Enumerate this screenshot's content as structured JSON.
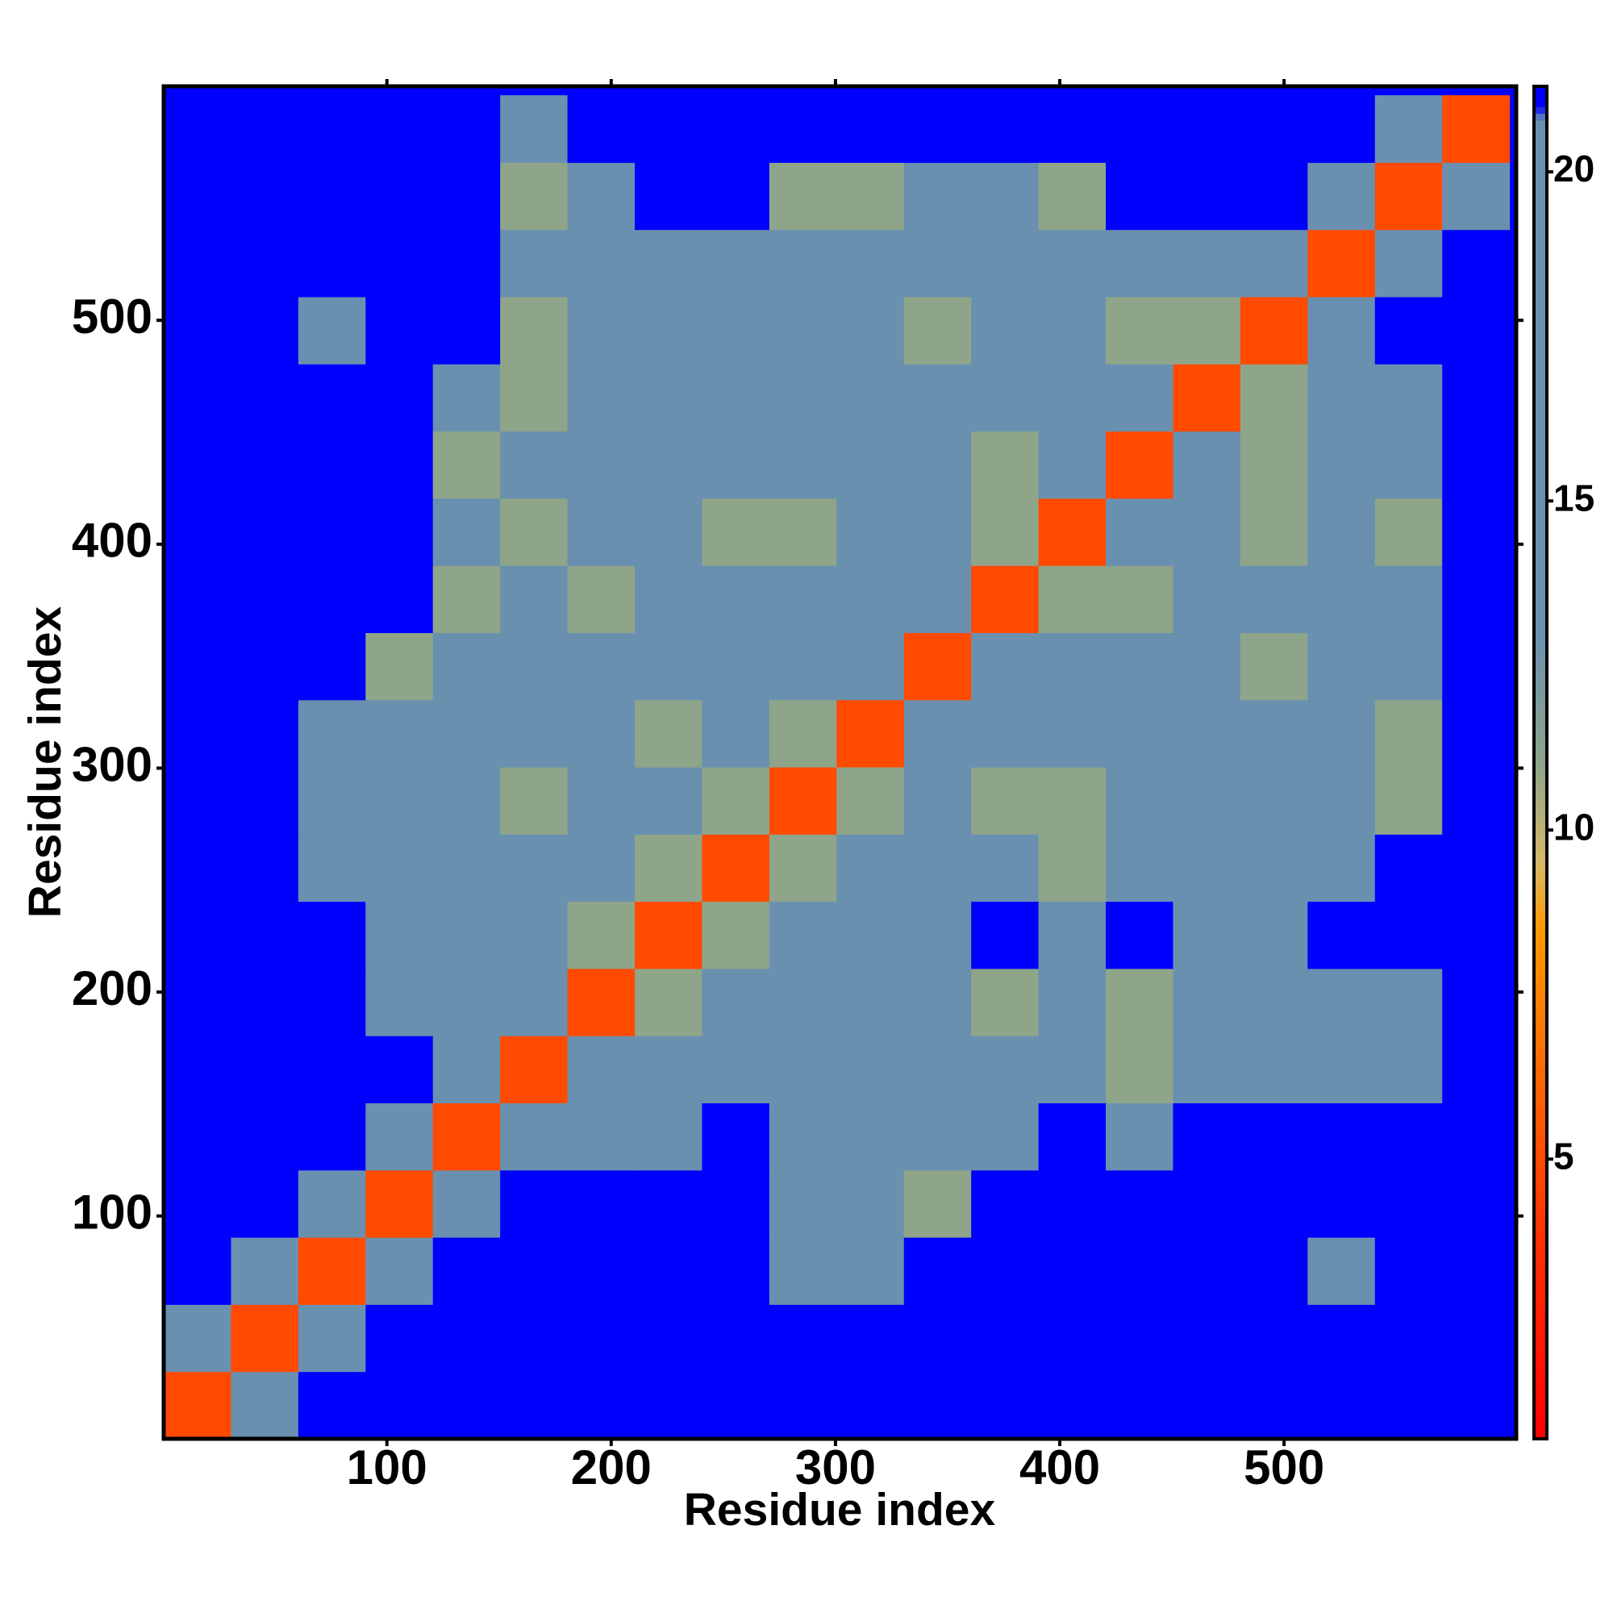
{
  "chart_data": {
    "type": "heatmap",
    "xlabel": "Residue index",
    "ylabel": "Residue index",
    "xlim": [
      0.5,
      603.5
    ],
    "ylim": [
      0.5,
      604.5
    ],
    "xticks": [
      100,
      200,
      300,
      400,
      500
    ],
    "yticks": [
      100,
      200,
      300,
      400,
      500
    ],
    "xbins": [
      0.5,
      30.5,
      60.5,
      90.5,
      120.5,
      150.5,
      180.5,
      210.5,
      240.5,
      270.5,
      300.5,
      330.5,
      360.5,
      390.5,
      420.5,
      450.5,
      480.5,
      510.5,
      540.5,
      570.5,
      600.5
    ],
    "ybins": [
      0.5,
      30.5,
      60.5,
      90.5,
      120.5,
      150.5,
      180.5,
      210.5,
      240.5,
      270.5,
      300.5,
      330.5,
      360.5,
      390.5,
      420.5,
      450.5,
      480.5,
      510.5,
      540.5,
      570.5,
      600.5
    ],
    "zlim": [
      0.75,
      21.3
    ],
    "zticks": [
      5,
      10,
      15,
      20
    ],
    "colorscale": [
      [
        0.75,
        "#ff0000"
      ],
      [
        4,
        "#ff3300"
      ],
      [
        8.5,
        "#ff9900"
      ],
      [
        9.5,
        "#d8b868"
      ],
      [
        11,
        "#8ea58a"
      ],
      [
        13,
        "#6a90b0"
      ],
      [
        20.8,
        "#6a90b0"
      ],
      [
        21,
        "#0000ff"
      ],
      [
        21.3,
        "#0000ff"
      ]
    ],
    "values": [
      [
        5,
        16,
        21,
        21,
        21,
        21,
        21,
        21,
        21,
        21,
        21,
        21,
        21,
        21,
        21,
        21,
        21,
        21,
        21,
        21
      ],
      [
        16,
        5,
        16,
        21,
        21,
        21,
        21,
        21,
        21,
        21,
        21,
        21,
        21,
        21,
        21,
        21,
        21,
        21,
        21,
        21
      ],
      [
        21,
        16,
        5,
        16,
        21,
        21,
        21,
        21,
        21,
        16,
        16,
        21,
        21,
        21,
        21,
        21,
        21,
        16,
        21,
        21
      ],
      [
        21,
        21,
        16,
        5,
        16,
        21,
        21,
        21,
        21,
        16,
        16,
        11,
        21,
        21,
        21,
        21,
        21,
        21,
        21,
        21
      ],
      [
        21,
        21,
        21,
        16,
        5,
        16,
        16,
        16,
        21,
        16,
        16,
        16,
        16,
        21,
        16,
        21,
        21,
        21,
        21,
        21
      ],
      [
        21,
        21,
        21,
        21,
        16,
        5,
        16,
        16,
        16,
        16,
        16,
        16,
        16,
        16,
        11,
        16,
        16,
        16,
        16,
        21
      ],
      [
        21,
        21,
        21,
        16,
        16,
        16,
        5,
        11,
        16,
        16,
        16,
        16,
        11,
        16,
        11,
        16,
        16,
        16,
        16,
        21
      ],
      [
        21,
        21,
        21,
        16,
        16,
        16,
        11,
        5,
        11,
        16,
        16,
        16,
        21,
        16,
        21,
        16,
        16,
        21,
        21,
        21
      ],
      [
        21,
        21,
        16,
        16,
        16,
        16,
        16,
        11,
        5,
        11,
        16,
        16,
        16,
        11,
        16,
        16,
        16,
        16,
        21,
        21
      ],
      [
        21,
        21,
        16,
        16,
        16,
        11,
        16,
        16,
        11,
        5,
        11,
        16,
        11,
        11,
        16,
        16,
        16,
        16,
        11,
        21
      ],
      [
        21,
        21,
        16,
        16,
        16,
        16,
        16,
        11,
        16,
        11,
        5,
        16,
        16,
        16,
        16,
        16,
        16,
        16,
        11,
        21
      ],
      [
        21,
        21,
        21,
        11,
        16,
        16,
        16,
        16,
        16,
        16,
        16,
        5,
        16,
        16,
        16,
        16,
        11,
        16,
        16,
        21
      ],
      [
        21,
        21,
        21,
        21,
        11,
        16,
        11,
        16,
        16,
        16,
        16,
        16,
        5,
        11,
        11,
        16,
        16,
        16,
        16,
        21
      ],
      [
        21,
        21,
        21,
        21,
        16,
        11,
        16,
        16,
        11,
        11,
        16,
        16,
        11,
        5,
        16,
        16,
        11,
        16,
        11,
        21
      ],
      [
        21,
        21,
        21,
        21,
        11,
        16,
        16,
        16,
        16,
        16,
        16,
        16,
        11,
        16,
        5,
        16,
        11,
        16,
        16,
        21
      ],
      [
        21,
        21,
        21,
        21,
        16,
        11,
        16,
        16,
        16,
        16,
        16,
        16,
        16,
        16,
        16,
        5,
        11,
        16,
        16,
        21
      ],
      [
        21,
        21,
        16,
        21,
        21,
        11,
        16,
        16,
        16,
        16,
        16,
        11,
        16,
        16,
        11,
        11,
        5,
        16,
        21,
        21
      ],
      [
        21,
        21,
        21,
        21,
        21,
        16,
        16,
        16,
        16,
        16,
        16,
        16,
        16,
        16,
        16,
        16,
        16,
        5,
        16,
        21
      ],
      [
        21,
        21,
        21,
        21,
        21,
        11,
        16,
        21,
        21,
        11,
        11,
        16,
        16,
        11,
        21,
        21,
        21,
        16,
        5,
        16
      ],
      [
        21,
        21,
        21,
        21,
        21,
        16,
        21,
        21,
        21,
        21,
        21,
        21,
        21,
        21,
        21,
        21,
        21,
        21,
        16,
        5
      ]
    ]
  }
}
